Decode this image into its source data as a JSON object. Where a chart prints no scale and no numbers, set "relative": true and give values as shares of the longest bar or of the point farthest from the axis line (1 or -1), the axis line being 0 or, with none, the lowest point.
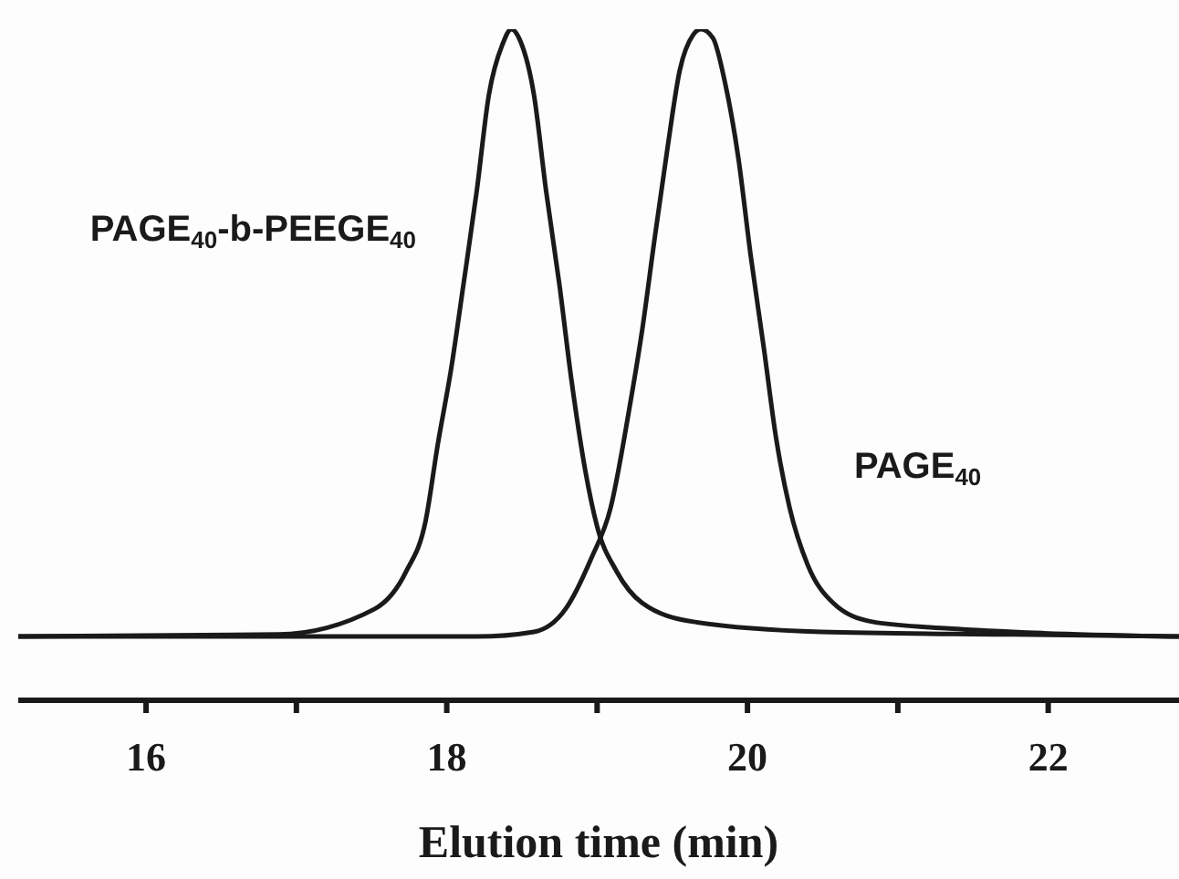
{
  "chart_data": {
    "type": "line",
    "xlabel": "Elution time (min)",
    "relative": true,
    "xlim": [
      15.15,
      22.87
    ],
    "xticks": [
      16,
      {
        "value": 17,
        "label": null
      },
      18,
      {
        "value": 19,
        "label": null
      },
      20,
      {
        "value": 21,
        "label": null
      },
      22
    ],
    "legend": false,
    "marker": "none",
    "line_style": "solid",
    "tick_labels": "x",
    "series": [
      {
        "name": "PAGE$_{40}$-b-PEEGE$_{40}$",
        "color": "#1a1a1a",
        "x": [
          15.15,
          16.88,
          17.52,
          17.73,
          17.86,
          17.94,
          18.03,
          18.11,
          18.2,
          18.28,
          18.37,
          18.43,
          18.49,
          18.58,
          18.66,
          18.75,
          18.83,
          18.92,
          19.0,
          19.13,
          19.3,
          19.64,
          20.49,
          21.76,
          22.87
        ],
        "values": [
          0.095,
          0.098,
          0.136,
          0.192,
          0.268,
          0.381,
          0.495,
          0.618,
          0.76,
          0.902,
          0.977,
          1,
          0.982,
          0.902,
          0.76,
          0.618,
          0.476,
          0.344,
          0.259,
          0.192,
          0.145,
          0.117,
          0.102,
          0.098,
          0.095
        ]
      },
      {
        "name": "PAGE$_{40}$",
        "color": "#1a1a1a",
        "x": [
          15.15,
          18.2,
          18.58,
          18.79,
          18.96,
          19.09,
          19.21,
          19.3,
          19.38,
          19.47,
          19.55,
          19.64,
          19.69,
          19.77,
          19.85,
          19.94,
          20.02,
          20.11,
          20.19,
          20.28,
          20.4,
          20.57,
          20.83,
          21.34,
          21.97,
          22.87
        ],
        "values": [
          0.095,
          0.095,
          0.102,
          0.136,
          0.211,
          0.287,
          0.429,
          0.552,
          0.684,
          0.826,
          0.939,
          0.992,
          1,
          0.987,
          0.921,
          0.807,
          0.665,
          0.523,
          0.391,
          0.287,
          0.202,
          0.145,
          0.117,
          0.107,
          0.1,
          0.095
        ]
      }
    ]
  }
}
